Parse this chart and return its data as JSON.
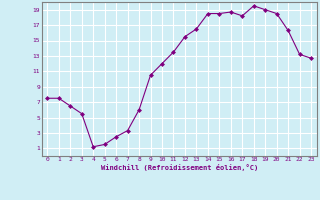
{
  "x": [
    0,
    1,
    2,
    3,
    4,
    5,
    6,
    7,
    8,
    9,
    10,
    11,
    12,
    13,
    14,
    15,
    16,
    17,
    18,
    19,
    20,
    21,
    22,
    23
  ],
  "y": [
    7.5,
    7.5,
    6.5,
    5.5,
    1.2,
    1.5,
    2.5,
    3.3,
    6.0,
    10.5,
    12.0,
    13.5,
    15.5,
    16.5,
    18.5,
    18.5,
    18.7,
    18.2,
    19.5,
    19.0,
    18.5,
    16.3,
    13.2,
    12.7
  ],
  "line_color": "#800080",
  "marker": "D",
  "marker_size": 2.0,
  "bg_color": "#d0eef5",
  "grid_color": "#ffffff",
  "xlabel": "Windchill (Refroidissement éolien,°C)",
  "xlabel_color": "#800080",
  "tick_color": "#800080",
  "axis_color": "#808080",
  "ylim": [
    0,
    20
  ],
  "xlim": [
    -0.5,
    23.5
  ],
  "yticks": [
    1,
    3,
    5,
    7,
    9,
    11,
    13,
    15,
    17,
    19
  ],
  "xticks": [
    0,
    1,
    2,
    3,
    4,
    5,
    6,
    7,
    8,
    9,
    10,
    11,
    12,
    13,
    14,
    15,
    16,
    17,
    18,
    19,
    20,
    21,
    22,
    23
  ]
}
